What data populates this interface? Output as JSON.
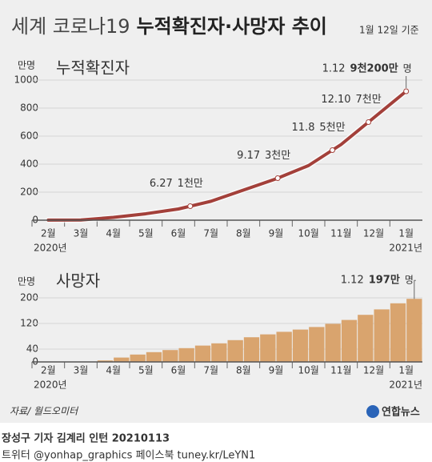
{
  "header": {
    "title_light": "세계 코로나19",
    "title_bold": "누적확진자·사망자 추이",
    "date": "1월 12일 기준"
  },
  "chart_data": [
    {
      "type": "line",
      "title": "누적확진자",
      "y_unit": "만명",
      "color": "#a3403a",
      "categories": [
        "2월",
        "3월",
        "4월",
        "5월",
        "6월",
        "7월",
        "8월",
        "9월",
        "10월",
        "11월",
        "12월",
        "1월"
      ],
      "year_labels": [
        "2020년",
        "2021년"
      ],
      "values": [
        0.7,
        1.7,
        20,
        46,
        80,
        135,
        215,
        295,
        390,
        540,
        730,
        920
      ],
      "ylim": [
        0,
        1000
      ],
      "yticks": [
        0,
        200,
        400,
        600,
        800,
        1000
      ],
      "grid": true,
      "annotations": [
        {
          "date": "6.27",
          "label": "1천만",
          "value": 100
        },
        {
          "date": "9.17",
          "label": "3천만",
          "value": 300
        },
        {
          "date": "11.8",
          "label": "5천만",
          "value": 500
        },
        {
          "date": "12.10",
          "label": "7천만",
          "value": 700
        },
        {
          "date": "1.12",
          "label": "9천200만",
          "unit": "명",
          "value": 920,
          "highlight": true
        }
      ]
    },
    {
      "type": "bar",
      "title": "사망자",
      "y_unit": "만명",
      "color": "#d9a46e",
      "categories": [
        "2월",
        null,
        "3월",
        null,
        "4월",
        null,
        "5월",
        null,
        "6월",
        null,
        "7월",
        null,
        "8월",
        null,
        "9월",
        null,
        "10월",
        null,
        "11월",
        null,
        "12월",
        null,
        "1월",
        null
      ],
      "year_labels": [
        "2020년",
        "2021년"
      ],
      "values": [
        0.02,
        0.15,
        0.3,
        0.6,
        4.6,
        13.6,
        23,
        30.5,
        37,
        43,
        51,
        58,
        68,
        77,
        86,
        94,
        101,
        109,
        119,
        131,
        147,
        164,
        183,
        197
      ],
      "ylim": [
        0,
        210
      ],
      "yticks": [
        0,
        40,
        120,
        200
      ],
      "grid": true,
      "annotations": [
        {
          "date": "1.12",
          "label": "197만",
          "unit": "명",
          "value": 197,
          "highlight": true
        }
      ]
    }
  ],
  "source": "자료/ 월드오미터",
  "logo": "연합뉴스",
  "credits": [
    "장성구 기자  김계리 인턴  20210113",
    "트위터 @yonhap_graphics  페이스북 tuney.kr/LeYN1"
  ]
}
